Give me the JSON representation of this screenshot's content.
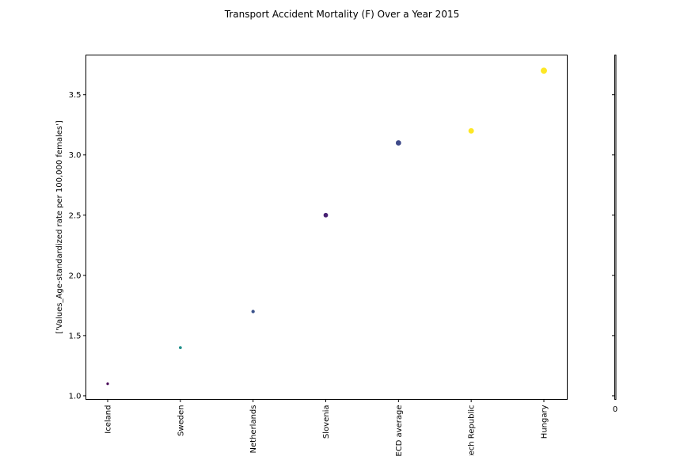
{
  "chart_data": {
    "type": "scatter",
    "title": "Transport Accident Mortality (F) Over a Year 2015",
    "xlabel": "",
    "ylabel": "['Values_Age-standardized rate per 100,000 females']",
    "categories": [
      "Iceland",
      "Sweden",
      "Netherlands",
      "Slovenia",
      "OECD average",
      "Czech Republic",
      "Hungary"
    ],
    "values": [
      1.1,
      1.4,
      1.7,
      2.5,
      3.1,
      3.2,
      3.7
    ],
    "colors": [
      "#440154",
      "#21918c",
      "#3b528b",
      "#482173",
      "#3e4a89",
      "#fde725",
      "#fde725"
    ],
    "ylim": [
      0.97,
      3.83
    ],
    "yticks": [
      "1.0",
      "1.5",
      "2.0",
      "2.5",
      "3.0",
      "3.5"
    ],
    "colorbar_tick": "0",
    "grid": false
  }
}
